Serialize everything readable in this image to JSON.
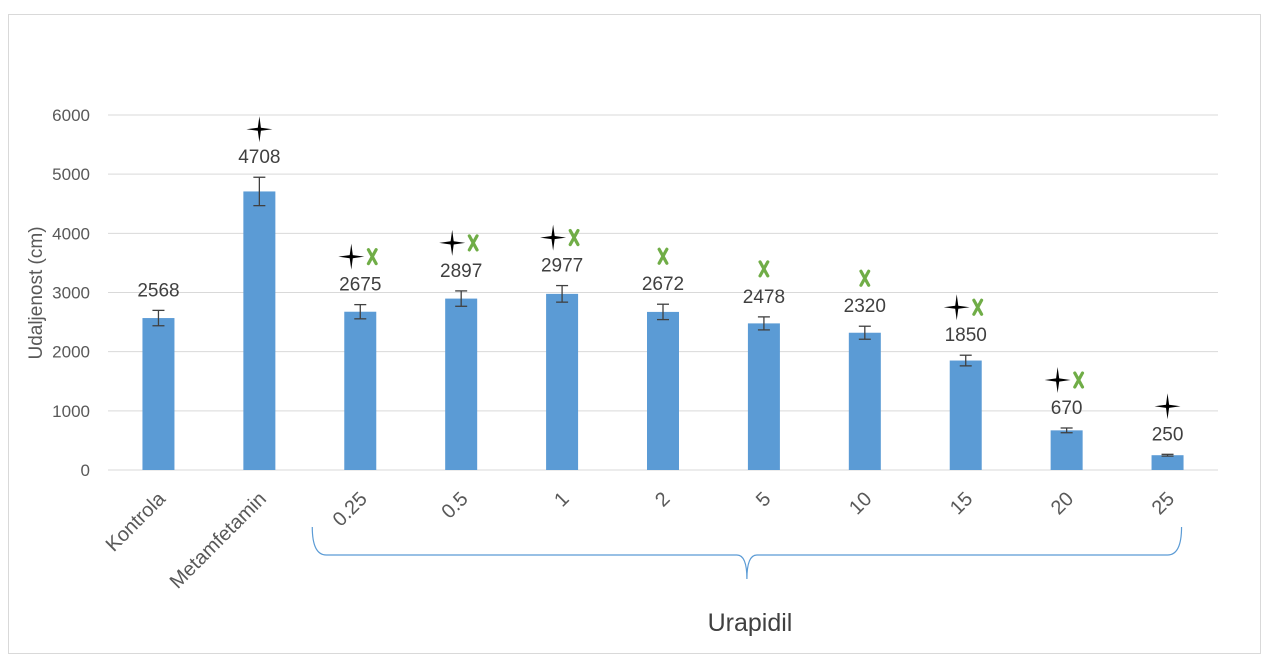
{
  "chart_data": {
    "type": "bar",
    "title": "",
    "ylabel": "Udaljenost (cm)",
    "xlabel": "",
    "ylim": [
      0,
      6000
    ],
    "yticks": [
      0,
      1000,
      2000,
      3000,
      4000,
      5000,
      6000
    ],
    "ytick_labels": [
      "0",
      "1000",
      "2000",
      "3000",
      "4000",
      "5000",
      "6000"
    ],
    "grid": true,
    "bar_color": "#5b9bd5",
    "categories": [
      "Kontrola",
      "Metamfetamin",
      "0.25",
      "0.5",
      "1",
      "2",
      "5",
      "10",
      "15",
      "20",
      "25"
    ],
    "values": [
      2568,
      4708,
      2675,
      2897,
      2977,
      2672,
      2478,
      2320,
      1850,
      670,
      250
    ],
    "data_labels": [
      "2568",
      "4708",
      "2675",
      "2897",
      "2977",
      "2672",
      "2478",
      "2320",
      "1850",
      "670",
      "250"
    ],
    "errors": [
      130,
      240,
      120,
      130,
      140,
      130,
      110,
      110,
      90,
      40,
      15
    ],
    "markers": {
      "star_color": "#000000",
      "cross_color": "#70ad47",
      "star": [
        false,
        true,
        true,
        true,
        true,
        false,
        false,
        false,
        true,
        true,
        true
      ],
      "cross": [
        false,
        false,
        true,
        true,
        true,
        true,
        true,
        true,
        true,
        true,
        false
      ]
    },
    "group_bracket": {
      "label": "Urapidil",
      "from_category": "0.25",
      "to_category": "25",
      "color": "#5b9bd5"
    }
  }
}
